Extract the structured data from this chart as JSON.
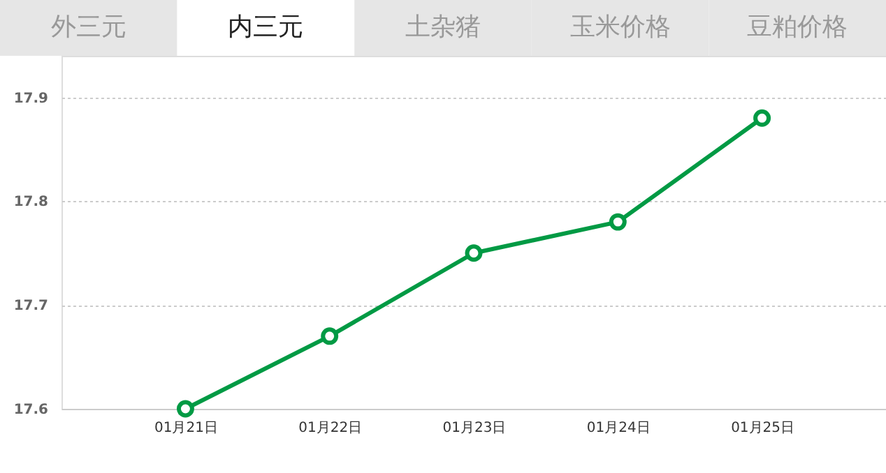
{
  "chart_data": {
    "type": "line",
    "annotations": [
      "外三元",
      "内三元",
      "土杂猪",
      "玉米价格",
      "豆粕价格"
    ],
    "categories": [
      "01月21日",
      "01月22日",
      "01月23日",
      "01月24日",
      "01月25日"
    ],
    "series": [
      {
        "color": "#009a44",
        "values": [
          17.6,
          17.67,
          17.75,
          17.78,
          17.88
        ]
      }
    ],
    "ylim": [
      17.6,
      17.94
    ],
    "yticks": [
      17.6,
      17.7,
      17.8,
      17.9
    ],
    "grid": "y",
    "marker": "circle",
    "line_style": "solid"
  }
}
